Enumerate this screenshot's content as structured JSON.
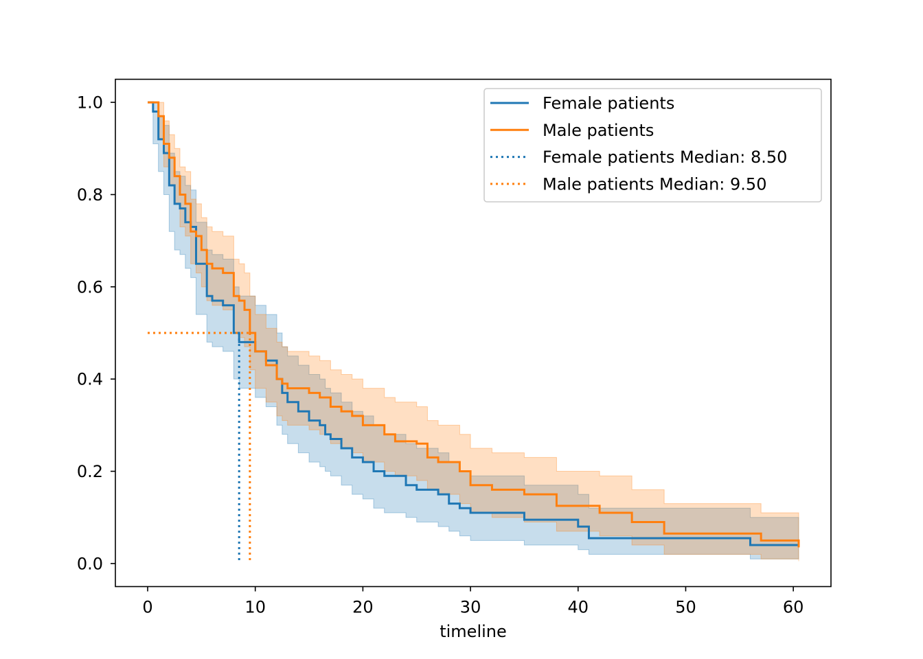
{
  "chart_data": {
    "type": "line",
    "title": "",
    "xlabel": "timeline",
    "ylabel": "",
    "xlim": [
      -3,
      63.5
    ],
    "ylim": [
      -0.05,
      1.05
    ],
    "xticks": [
      0,
      10,
      20,
      30,
      40,
      50,
      60
    ],
    "xtick_labels": [
      "0",
      "10",
      "20",
      "30",
      "40",
      "50",
      "60"
    ],
    "yticks": [
      0.0,
      0.2,
      0.4,
      0.6,
      0.8,
      1.0
    ],
    "ytick_labels": [
      "0.0",
      "0.2",
      "0.4",
      "0.6",
      "0.8",
      "1.0"
    ],
    "grid": false,
    "legend_position": "top-right",
    "series": [
      {
        "name": "Female patients",
        "color": "#1f77b4",
        "style": "step",
        "x": [
          0,
          0.5,
          1,
          1.5,
          2,
          2.5,
          3,
          3.5,
          4,
          4.5,
          5,
          5.5,
          6,
          7,
          8,
          8.5,
          10,
          11,
          12,
          12.5,
          13,
          14,
          15,
          16,
          16.5,
          17,
          18,
          19,
          20,
          21,
          22,
          24,
          25,
          27,
          28,
          29,
          30,
          35,
          40,
          41,
          56,
          60.5
        ],
        "y": [
          1.0,
          0.98,
          0.92,
          0.89,
          0.82,
          0.78,
          0.77,
          0.74,
          0.73,
          0.65,
          0.65,
          0.58,
          0.57,
          0.56,
          0.5,
          0.48,
          0.46,
          0.44,
          0.4,
          0.37,
          0.35,
          0.33,
          0.31,
          0.3,
          0.28,
          0.27,
          0.25,
          0.23,
          0.22,
          0.2,
          0.19,
          0.17,
          0.16,
          0.15,
          0.13,
          0.12,
          0.11,
          0.095,
          0.08,
          0.055,
          0.04,
          0.04
        ],
        "ci_lower": [
          1.0,
          0.91,
          0.85,
          0.8,
          0.72,
          0.68,
          0.67,
          0.64,
          0.62,
          0.54,
          0.54,
          0.48,
          0.47,
          0.46,
          0.4,
          0.38,
          0.36,
          0.34,
          0.3,
          0.28,
          0.26,
          0.24,
          0.22,
          0.21,
          0.2,
          0.19,
          0.17,
          0.15,
          0.14,
          0.12,
          0.11,
          0.1,
          0.09,
          0.08,
          0.07,
          0.06,
          0.05,
          0.04,
          0.03,
          0.02,
          0.01,
          0.01
        ],
        "ci_upper": [
          1.0,
          1.0,
          0.97,
          0.95,
          0.89,
          0.85,
          0.84,
          0.82,
          0.81,
          0.74,
          0.74,
          0.68,
          0.67,
          0.66,
          0.6,
          0.58,
          0.56,
          0.54,
          0.5,
          0.47,
          0.45,
          0.43,
          0.41,
          0.4,
          0.38,
          0.37,
          0.35,
          0.33,
          0.32,
          0.3,
          0.28,
          0.26,
          0.25,
          0.24,
          0.22,
          0.2,
          0.19,
          0.17,
          0.15,
          0.12,
          0.1,
          0.1
        ]
      },
      {
        "name": "Male patients",
        "color": "#ff7f0e",
        "style": "step",
        "x": [
          0,
          1,
          1.5,
          2,
          2.5,
          3,
          3.5,
          4,
          4.5,
          5,
          5.5,
          6,
          7,
          8,
          8.5,
          9,
          9.5,
          10,
          11,
          12,
          12.5,
          13,
          15,
          16,
          17,
          18,
          19,
          20,
          22,
          23,
          25,
          26,
          27,
          29,
          30,
          32,
          35,
          38,
          42,
          45,
          48,
          57,
          60.5
        ],
        "y": [
          1.0,
          0.97,
          0.91,
          0.88,
          0.84,
          0.8,
          0.78,
          0.72,
          0.71,
          0.68,
          0.65,
          0.64,
          0.63,
          0.58,
          0.57,
          0.55,
          0.5,
          0.46,
          0.43,
          0.4,
          0.39,
          0.38,
          0.37,
          0.36,
          0.34,
          0.33,
          0.32,
          0.3,
          0.28,
          0.265,
          0.26,
          0.23,
          0.22,
          0.2,
          0.17,
          0.16,
          0.15,
          0.125,
          0.11,
          0.09,
          0.065,
          0.05,
          0.035
        ],
        "ci_lower": [
          1.0,
          0.92,
          0.86,
          0.82,
          0.78,
          0.73,
          0.71,
          0.65,
          0.63,
          0.6,
          0.57,
          0.56,
          0.55,
          0.5,
          0.49,
          0.47,
          0.42,
          0.38,
          0.35,
          0.32,
          0.31,
          0.3,
          0.29,
          0.28,
          0.26,
          0.25,
          0.24,
          0.22,
          0.2,
          0.19,
          0.18,
          0.16,
          0.15,
          0.13,
          0.11,
          0.1,
          0.09,
          0.07,
          0.06,
          0.04,
          0.02,
          0.01,
          0.005
        ],
        "ci_upper": [
          1.0,
          1.0,
          0.96,
          0.93,
          0.9,
          0.86,
          0.85,
          0.79,
          0.78,
          0.75,
          0.73,
          0.72,
          0.71,
          0.66,
          0.65,
          0.63,
          0.58,
          0.54,
          0.51,
          0.48,
          0.47,
          0.46,
          0.45,
          0.44,
          0.42,
          0.41,
          0.4,
          0.38,
          0.36,
          0.35,
          0.34,
          0.31,
          0.3,
          0.28,
          0.25,
          0.24,
          0.23,
          0.2,
          0.19,
          0.16,
          0.13,
          0.11,
          0.09
        ]
      }
    ],
    "medians": [
      {
        "name": "Female patients Median: 8.50",
        "value": 8.5,
        "color": "#1f77b4"
      },
      {
        "name": "Male patients Median: 9.50",
        "value": 9.5,
        "color": "#ff7f0e"
      }
    ]
  }
}
